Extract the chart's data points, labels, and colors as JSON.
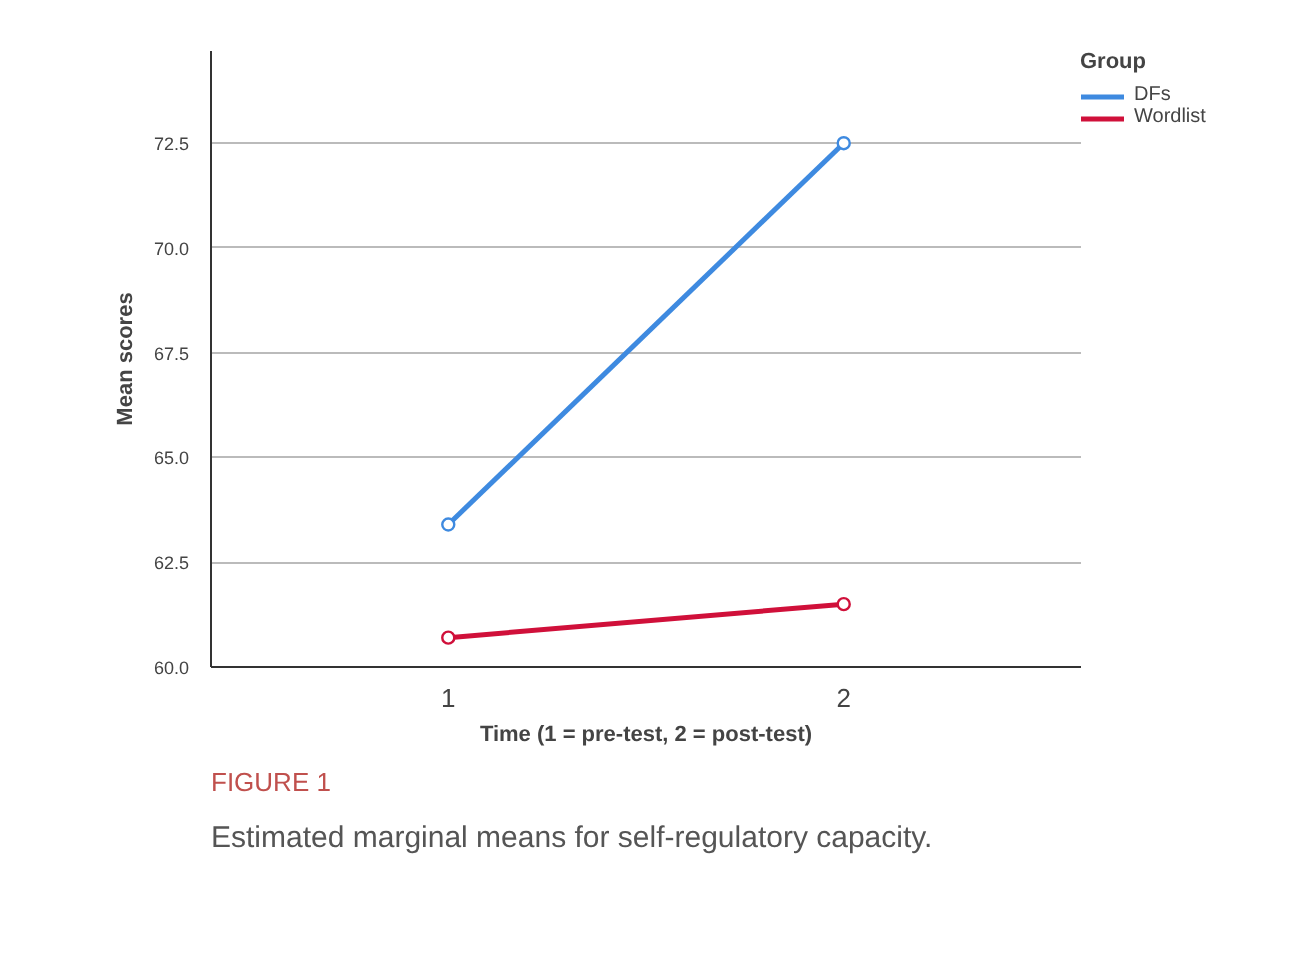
{
  "chart_data": {
    "type": "line",
    "xlabel": "Time (1 = pre-test, 2 = post-test)",
    "ylabel": "Mean scores",
    "legend_title": "Group",
    "x": [
      1,
      2
    ],
    "series": [
      {
        "name": "DFs",
        "color": "#3e8ae0",
        "values": [
          63.4,
          72.5
        ]
      },
      {
        "name": "Wordlist",
        "color": "#d0103a",
        "values": [
          60.7,
          61.5
        ]
      }
    ],
    "xlim": [
      0.4,
      2.6
    ],
    "xticks": [
      1,
      2
    ],
    "ylim": [
      60.0,
      74.7
    ],
    "yticks": [
      {
        "value": 60,
        "label": "60.0"
      },
      {
        "value": 62.5,
        "label": "62.5"
      },
      {
        "value": 65,
        "label": "65.0"
      },
      {
        "value": 67.5,
        "label": "67.5"
      },
      {
        "value": 70,
        "label": "70.0"
      },
      {
        "value": 72.5,
        "label": "72.5"
      }
    ],
    "grid": "y",
    "legend": "top right",
    "marker": "circle",
    "line_style": "solid",
    "annotations": [
      "FIGURE 1",
      "Estimated marginal means for self-regulatory capacity."
    ]
  }
}
